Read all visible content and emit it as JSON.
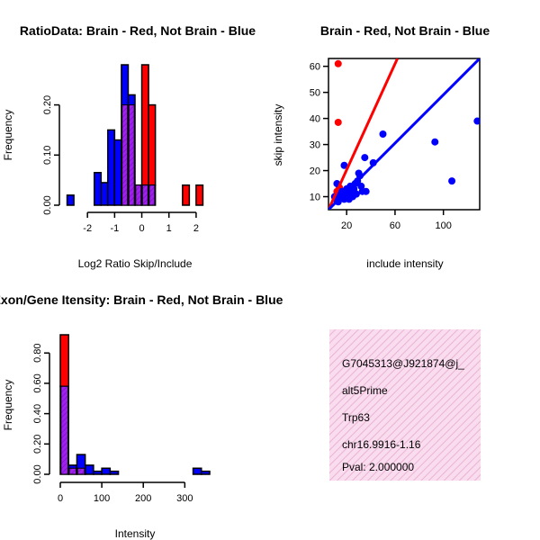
{
  "colors": {
    "red": "#ff0000",
    "blue": "#0000ff",
    "overlap": "#a020f0",
    "panel_fill": "#f9dcee",
    "panel_hatch": "#eab3d6",
    "pval": "#8b0000"
  },
  "chart_data": [
    {
      "type": "bar",
      "title": "RatioData: Brain - Red, Not Brain - Blue",
      "xlabel": "Log2 Ratio Skip/Include",
      "ylabel": "Frequency",
      "xlim": [
        -3.0,
        2.5
      ],
      "ylim": [
        0,
        0.28
      ],
      "xticks": [
        -2,
        -1,
        0,
        1,
        2
      ],
      "yticks": [
        0.0,
        0.1,
        0.2
      ],
      "bin_width": 0.25,
      "series": [
        {
          "name": "Not Brain",
          "color": "blue",
          "bins": [
            [
              -2.75,
              0.02
            ],
            [
              -1.75,
              0.065
            ],
            [
              -1.5,
              0.045
            ],
            [
              -1.25,
              0.15
            ],
            [
              -1.0,
              0.13
            ],
            [
              -0.75,
              0.28
            ],
            [
              -0.5,
              0.22
            ],
            [
              -0.25,
              0.04
            ],
            [
              0.0,
              0.04
            ],
            [
              0.25,
              0.04
            ]
          ]
        },
        {
          "name": "Brain",
          "color": "red",
          "bins": [
            [
              -0.75,
              0.2
            ],
            [
              -0.5,
              0.2
            ],
            [
              -0.25,
              0.04
            ],
            [
              0.0,
              0.28
            ],
            [
              0.25,
              0.2
            ],
            [
              1.5,
              0.04
            ],
            [
              2.0,
              0.04
            ]
          ]
        }
      ]
    },
    {
      "type": "scatter",
      "title": "Brain - Red, Not Brain - Blue",
      "xlabel": "include intensity",
      "ylabel": "skip intensity",
      "xlim": [
        5,
        130
      ],
      "ylim": [
        5,
        63
      ],
      "xticks": [
        20,
        60,
        100
      ],
      "yticks": [
        10,
        20,
        30,
        40,
        50,
        60
      ],
      "series": [
        {
          "name": "Brain",
          "color": "red",
          "points": [
            [
              13,
              61
            ],
            [
              13,
              38.5
            ],
            [
              12,
              12
            ],
            [
              14,
              13.5
            ]
          ],
          "fit_line": [
            [
              5,
              5
            ],
            [
              62,
              63
            ]
          ]
        },
        {
          "name": "Not Brain",
          "color": "blue",
          "points": [
            [
              12,
              15
            ],
            [
              14,
              12
            ],
            [
              15,
              10
            ],
            [
              16,
              11
            ],
            [
              18,
              22
            ],
            [
              18,
              9
            ],
            [
              20,
              13
            ],
            [
              21,
              12
            ],
            [
              22,
              11
            ],
            [
              23,
              14
            ],
            [
              24,
              12
            ],
            [
              25,
              10
            ],
            [
              26,
              13
            ],
            [
              27,
              15
            ],
            [
              28,
              11
            ],
            [
              29,
              16
            ],
            [
              30,
              19
            ],
            [
              31,
              18
            ],
            [
              32,
              14
            ],
            [
              33,
              12
            ],
            [
              35,
              25
            ],
            [
              36,
              12
            ],
            [
              42,
              23
            ],
            [
              50,
              34
            ],
            [
              93,
              31
            ],
            [
              107,
              16
            ],
            [
              128,
              39
            ],
            [
              10,
              10
            ],
            [
              11,
              9
            ],
            [
              13,
              8
            ],
            [
              17,
              12
            ],
            [
              19,
              10
            ],
            [
              22,
              9
            ]
          ],
          "fit_line": [
            [
              5,
              5
            ],
            [
              130,
              63
            ]
          ]
        }
      ]
    },
    {
      "type": "bar",
      "title": "Exon/Gene Itensity: Brain - Red, Not Brain - Blue",
      "xlabel": "Intensity",
      "ylabel": "Frequency",
      "xlim": [
        0,
        360
      ],
      "ylim": [
        0,
        0.92
      ],
      "xticks": [
        0,
        100,
        200,
        300
      ],
      "yticks": [
        0.0,
        0.2,
        0.4,
        0.6,
        0.8
      ],
      "bin_width": 20,
      "series": [
        {
          "name": "Not Brain",
          "color": "blue",
          "bins": [
            [
              0,
              0.58
            ],
            [
              20,
              0.06
            ],
            [
              40,
              0.13
            ],
            [
              60,
              0.06
            ],
            [
              80,
              0.02
            ],
            [
              100,
              0.04
            ],
            [
              120,
              0.02
            ],
            [
              320,
              0.04
            ],
            [
              340,
              0.02
            ]
          ]
        },
        {
          "name": "Brain",
          "color": "red",
          "bins": [
            [
              0,
              0.92
            ],
            [
              20,
              0.04
            ],
            [
              40,
              0.04
            ]
          ]
        }
      ]
    }
  ],
  "info_panel": {
    "id": "G7045313@J921874@j_",
    "event_type": "alt5Prime",
    "gene": "Trp63",
    "location": "chr16.9916-1.16",
    "pval": "Pval: 2.000000"
  }
}
